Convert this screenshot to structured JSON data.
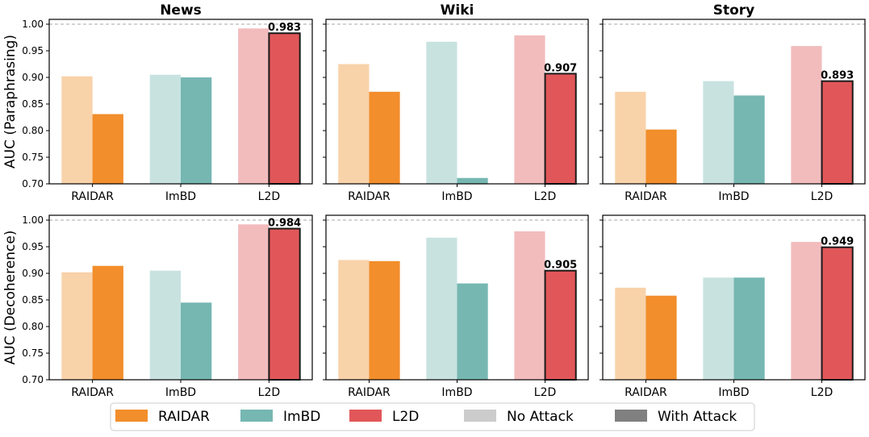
{
  "chart_data": {
    "type": "bar",
    "ylim": [
      0.7,
      1.0
    ],
    "yticks": [
      "0.70",
      "0.75",
      "0.80",
      "0.85",
      "0.90",
      "0.95",
      "1.00"
    ],
    "reference_line": 1.0,
    "categories": [
      "RAIDAR",
      "ImBD",
      "L2D"
    ],
    "columns": [
      "News",
      "Wiki",
      "Story"
    ],
    "rows": [
      {
        "ylabel": "AUC (Paraphrasing)",
        "panels": [
          {
            "title": "News",
            "no_attack": [
              0.902,
              0.905,
              0.992
            ],
            "with_attack": [
              0.831,
              0.9,
              0.983
            ],
            "label": "0.983"
          },
          {
            "title": "Wiki",
            "no_attack": [
              0.925,
              0.967,
              0.979
            ],
            "with_attack": [
              0.873,
              0.711,
              0.907
            ],
            "label": "0.907"
          },
          {
            "title": "Story",
            "no_attack": [
              0.873,
              0.893,
              0.959
            ],
            "with_attack": [
              0.802,
              0.866,
              0.893
            ],
            "label": "0.893"
          }
        ]
      },
      {
        "ylabel": "AUC (Decoherence)",
        "panels": [
          {
            "title": "News",
            "no_attack": [
              0.902,
              0.905,
              0.992
            ],
            "with_attack": [
              0.914,
              0.845,
              0.984
            ],
            "label": "0.984"
          },
          {
            "title": "Wiki",
            "no_attack": [
              0.925,
              0.967,
              0.979
            ],
            "with_attack": [
              0.923,
              0.881,
              0.905
            ],
            "label": "0.905"
          },
          {
            "title": "Story",
            "no_attack": [
              0.873,
              0.892,
              0.959
            ],
            "with_attack": [
              0.858,
              0.892,
              0.949
            ],
            "label": "0.949"
          }
        ]
      }
    ],
    "colors": {
      "RAIDAR": {
        "strong": "#F28E2B",
        "light": "#F8D2A9"
      },
      "ImBD": {
        "strong": "#76B7B2",
        "light": "#C8E2E0"
      },
      "L2D": {
        "strong": "#E15759",
        "light": "#F2BCBD"
      }
    },
    "legend": {
      "placement": "bottom-center",
      "items": [
        {
          "label": "RAIDAR",
          "color": "#F28E2B"
        },
        {
          "label": "ImBD",
          "color": "#76B7B2"
        },
        {
          "label": "L2D",
          "color": "#E15759"
        },
        {
          "label": "No Attack",
          "color": "#CCCCCC"
        },
        {
          "label": "With Attack",
          "color": "#808080"
        }
      ]
    }
  }
}
